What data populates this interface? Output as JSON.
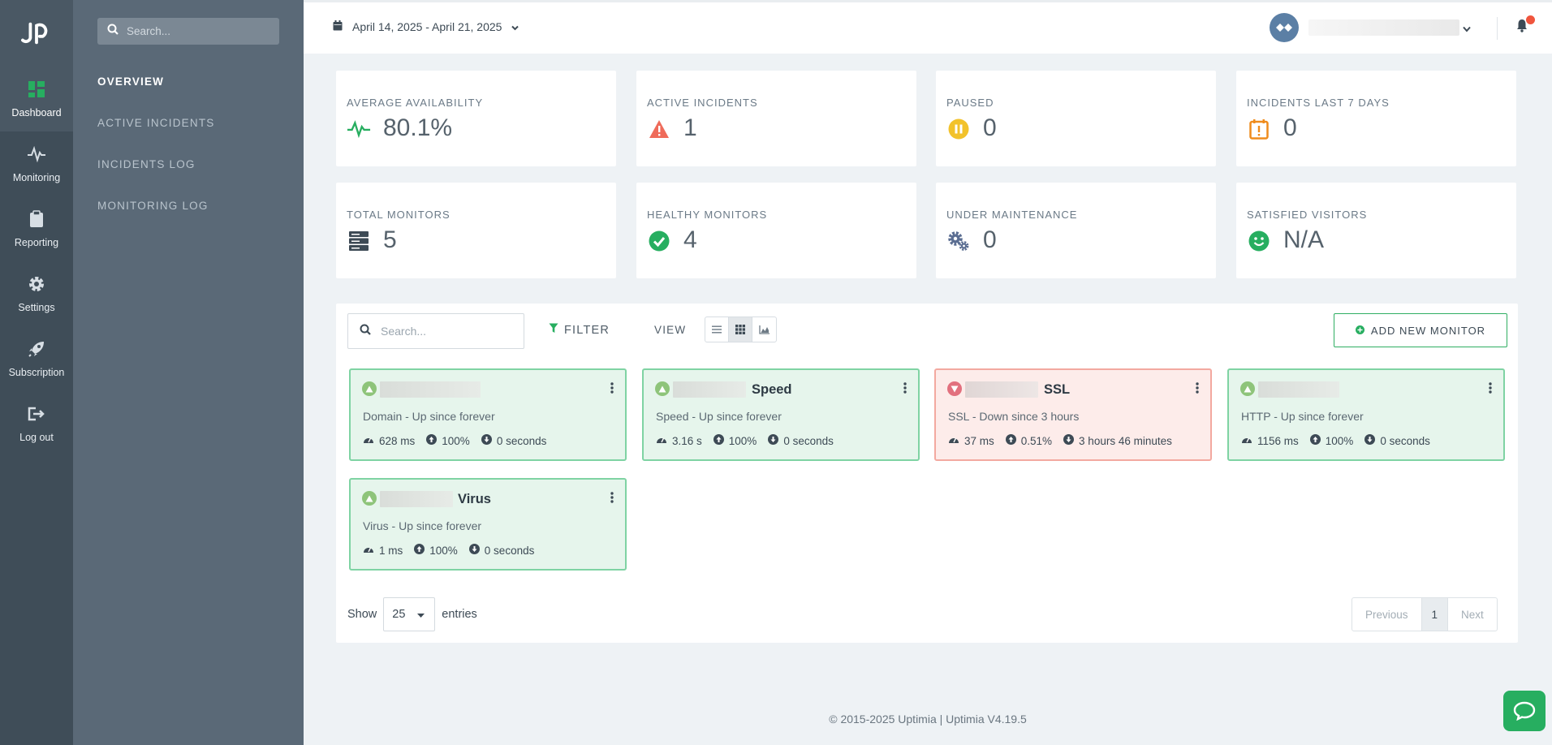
{
  "rail": {
    "items": [
      {
        "label": "Dashboard",
        "icon": "dashboard-icon"
      },
      {
        "label": "Monitoring",
        "icon": "pulse-icon"
      },
      {
        "label": "Reporting",
        "icon": "clipboard-icon"
      },
      {
        "label": "Settings",
        "icon": "gear-icon"
      },
      {
        "label": "Subscription",
        "icon": "rocket-icon"
      },
      {
        "label": "Log out",
        "icon": "logout-icon"
      }
    ]
  },
  "subnav": {
    "search_placeholder": "Search...",
    "links": [
      "OVERVIEW",
      "ACTIVE INCIDENTS",
      "INCIDENTS LOG",
      "MONITORING LOG"
    ]
  },
  "topbar": {
    "date_range": "April 14, 2025 - April 21, 2025"
  },
  "stats": [
    {
      "label": "AVERAGE AVAILABILITY",
      "value": "80.1%",
      "icon": "pulse-icon",
      "color": "#27ae60"
    },
    {
      "label": "ACTIVE INCIDENTS",
      "value": "1",
      "icon": "warning-icon",
      "color": "#ef6b5a"
    },
    {
      "label": "PAUSED",
      "value": "0",
      "icon": "pause-icon",
      "color": "#f2c22b"
    },
    {
      "label": "INCIDENTS LAST 7 DAYS",
      "value": "0",
      "icon": "calendar-alert-icon",
      "color": "#ef8c1d"
    },
    {
      "label": "TOTAL MONITORS",
      "value": "5",
      "icon": "server-icon",
      "color": "#3d4a55"
    },
    {
      "label": "HEALTHY MONITORS",
      "value": "4",
      "icon": "check-circle-icon",
      "color": "#27ae60"
    },
    {
      "label": "UNDER MAINTENANCE",
      "value": "0",
      "icon": "gears-icon",
      "color": "#5b6e92"
    },
    {
      "label": "SATISFIED VISITORS",
      "value": "N/A",
      "icon": "smile-icon",
      "color": "#27ae60"
    }
  ],
  "panel": {
    "search_placeholder": "Search...",
    "filter_label": "FILTER",
    "view_label": "VIEW",
    "add_label": "ADD NEW MONITOR"
  },
  "monitors": [
    {
      "name": "",
      "status": "up",
      "subtitle": "Domain - Up since forever",
      "response": "628 ms",
      "uptime": "100%",
      "downtime": "0 seconds"
    },
    {
      "name": "Speed",
      "status": "up",
      "subtitle": "Speed - Up since forever",
      "response": "3.16 s",
      "uptime": "100%",
      "downtime": "0 seconds"
    },
    {
      "name": "SSL",
      "status": "down",
      "subtitle": "SSL - Down since 3 hours",
      "response": "37 ms",
      "uptime": "0.51%",
      "downtime": "3 hours 46 minutes"
    },
    {
      "name": "",
      "status": "up",
      "subtitle": "HTTP - Up since forever",
      "response": "1156 ms",
      "uptime": "100%",
      "downtime": "0 seconds"
    },
    {
      "name": "Virus",
      "status": "up",
      "subtitle": "Virus - Up since forever",
      "response": "1 ms",
      "uptime": "100%",
      "downtime": "0 seconds"
    }
  ],
  "table": {
    "show_label": "Show",
    "entries_value": "25",
    "entries_label": "entries",
    "prev_label": "Previous",
    "page": "1",
    "next_label": "Next"
  },
  "footer": "© 2015-2025 Uptimia | Uptimia V4.19.5",
  "colors": {
    "accent": "#27ae60",
    "down": "#e2707e",
    "rail": "#3f4d58",
    "subnav": "#5a6977"
  }
}
